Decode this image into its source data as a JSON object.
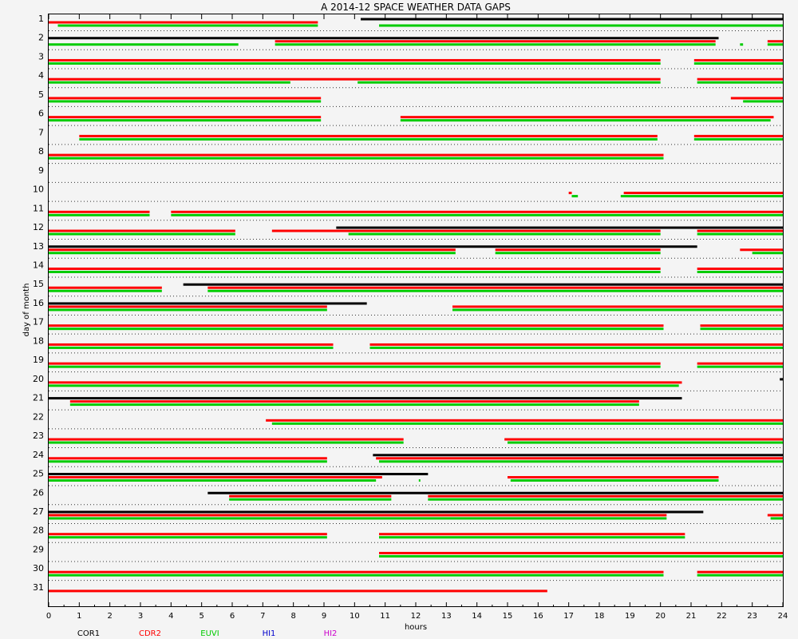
{
  "chart_data": {
    "type": "gantt",
    "title": "A  2014-12 SPACE WEATHER DATA GAPS",
    "xlabel": "hours",
    "ylabel": "day of month",
    "xlim": [
      0,
      24
    ],
    "days": [
      "1",
      "2",
      "3",
      "4",
      "5",
      "6",
      "7",
      "8",
      "9",
      "10",
      "11",
      "12",
      "13",
      "14",
      "15",
      "16",
      "17",
      "18",
      "19",
      "20",
      "21",
      "22",
      "23",
      "24",
      "25",
      "26",
      "27",
      "28",
      "29",
      "30",
      "31"
    ],
    "x_ticks": [
      "0",
      "1",
      "2",
      "3",
      "4",
      "5",
      "6",
      "7",
      "8",
      "9",
      "10",
      "11",
      "12",
      "13",
      "14",
      "15",
      "16",
      "17",
      "18",
      "19",
      "20",
      "21",
      "22",
      "23",
      "24"
    ],
    "series": [
      {
        "name": "COR1",
        "color": "#000000",
        "offset": -4,
        "segments": [
          [
            1,
            10.2,
            24
          ],
          [
            2,
            0,
            21.9
          ],
          [
            12,
            9.4,
            24
          ],
          [
            13,
            0,
            21.2
          ],
          [
            15,
            4.4,
            24
          ],
          [
            16,
            0,
            10.4
          ],
          [
            20,
            23.9,
            24
          ],
          [
            21,
            0,
            20.7
          ],
          [
            24,
            10.6,
            24
          ],
          [
            25,
            0,
            12.4
          ],
          [
            26,
            5.2,
            24
          ],
          [
            27,
            0,
            21.4
          ]
        ]
      },
      {
        "name": "CDR2",
        "color": "#ff0000",
        "offset": 0,
        "segments": [
          [
            1,
            0,
            8.8
          ],
          [
            2,
            7.4,
            21.8
          ],
          [
            2,
            23.5,
            24
          ],
          [
            3,
            0,
            20
          ],
          [
            3,
            21.1,
            24
          ],
          [
            4,
            0,
            20
          ],
          [
            4,
            21.2,
            24
          ],
          [
            5,
            0,
            8.9
          ],
          [
            5,
            22.3,
            24
          ],
          [
            6,
            0,
            8.9
          ],
          [
            6,
            11.5,
            23.7
          ],
          [
            7,
            1,
            19.9
          ],
          [
            7,
            21.1,
            24
          ],
          [
            8,
            0,
            20.1
          ],
          [
            10,
            17,
            17.1
          ],
          [
            10,
            18.8,
            24
          ],
          [
            11,
            0,
            3.3
          ],
          [
            11,
            4,
            24
          ],
          [
            12,
            0,
            6.1
          ],
          [
            12,
            7.3,
            20
          ],
          [
            12,
            21.2,
            24
          ],
          [
            13,
            0,
            13.3
          ],
          [
            13,
            14.6,
            20
          ],
          [
            13,
            22.6,
            24
          ],
          [
            14,
            0,
            20
          ],
          [
            14,
            21.2,
            24
          ],
          [
            15,
            0,
            3.7
          ],
          [
            15,
            5.2,
            24
          ],
          [
            16,
            0,
            9.1
          ],
          [
            16,
            13.2,
            24
          ],
          [
            17,
            0,
            20.1
          ],
          [
            17,
            21.3,
            24
          ],
          [
            18,
            0,
            9.3
          ],
          [
            18,
            10.5,
            24
          ],
          [
            19,
            0,
            20
          ],
          [
            19,
            21.2,
            24
          ],
          [
            20,
            0,
            20.7
          ],
          [
            21,
            0.7,
            19.3
          ],
          [
            22,
            7.1,
            24
          ],
          [
            23,
            0,
            11.6
          ],
          [
            23,
            14.9,
            24
          ],
          [
            24,
            0,
            9.1
          ],
          [
            24,
            10.7,
            24
          ],
          [
            25,
            0,
            10.9
          ],
          [
            25,
            15,
            21.9
          ],
          [
            26,
            5.9,
            11.2
          ],
          [
            26,
            12.4,
            24
          ],
          [
            27,
            0,
            20.2
          ],
          [
            27,
            23.5,
            24
          ],
          [
            28,
            0,
            9.1
          ],
          [
            28,
            10.8,
            20.8
          ],
          [
            29,
            10.8,
            24
          ],
          [
            30,
            0,
            20.1
          ],
          [
            30,
            21.2,
            24
          ],
          [
            31,
            0,
            16.3
          ]
        ]
      },
      {
        "name": "EUVI",
        "color": "#00cc00",
        "offset": 4,
        "segments": [
          [
            1,
            0.3,
            8.8
          ],
          [
            1,
            10.8,
            24
          ],
          [
            2,
            0,
            6.2
          ],
          [
            2,
            7.4,
            21.8
          ],
          [
            2,
            22.6,
            22.7
          ],
          [
            2,
            23.5,
            24
          ],
          [
            3,
            0,
            20
          ],
          [
            3,
            21.1,
            24
          ],
          [
            4,
            0,
            7.9
          ],
          [
            4,
            10.1,
            20
          ],
          [
            4,
            21.2,
            24
          ],
          [
            5,
            0,
            8.9
          ],
          [
            5,
            22.7,
            24
          ],
          [
            6,
            0,
            8.9
          ],
          [
            6,
            11.5,
            23.6
          ],
          [
            7,
            1,
            19.9
          ],
          [
            7,
            21.1,
            24
          ],
          [
            8,
            0,
            20.1
          ],
          [
            10,
            17.1,
            17.3
          ],
          [
            10,
            18.7,
            24
          ],
          [
            11,
            0,
            3.3
          ],
          [
            11,
            4,
            24
          ],
          [
            12,
            0,
            6.1
          ],
          [
            12,
            9.8,
            20
          ],
          [
            12,
            21.2,
            24
          ],
          [
            13,
            0,
            13.3
          ],
          [
            13,
            14.6,
            20
          ],
          [
            13,
            23,
            24
          ],
          [
            14,
            0,
            20
          ],
          [
            14,
            21.2,
            24
          ],
          [
            15,
            0,
            3.7
          ],
          [
            15,
            5.2,
            24
          ],
          [
            16,
            0,
            9.1
          ],
          [
            16,
            13.2,
            24
          ],
          [
            17,
            0,
            20.1
          ],
          [
            17,
            21.3,
            24
          ],
          [
            18,
            0,
            9.3
          ],
          [
            18,
            10.5,
            24
          ],
          [
            19,
            0,
            20
          ],
          [
            19,
            21.2,
            24
          ],
          [
            20,
            0,
            20.6
          ],
          [
            21,
            0.7,
            19.3
          ],
          [
            22,
            7.3,
            24
          ],
          [
            23,
            0,
            11.6
          ],
          [
            23,
            15,
            24
          ],
          [
            24,
            0,
            9.1
          ],
          [
            24,
            10.8,
            24
          ],
          [
            25,
            0,
            10.7
          ],
          [
            25,
            12.1,
            12.15
          ],
          [
            25,
            15.1,
            21.9
          ],
          [
            26,
            5.9,
            11.2
          ],
          [
            26,
            12.4,
            24
          ],
          [
            27,
            0,
            20.2
          ],
          [
            27,
            23.6,
            24
          ],
          [
            28,
            0,
            9.1
          ],
          [
            28,
            10.8,
            20.8
          ],
          [
            29,
            10.8,
            24
          ],
          [
            30,
            0,
            20.1
          ],
          [
            30,
            21.2,
            24
          ]
        ]
      },
      {
        "name": "HI1",
        "color": "#0000cc",
        "offset": 0,
        "segments": []
      },
      {
        "name": "HI2",
        "color": "#cc00cc",
        "offset": 0,
        "segments": []
      }
    ],
    "grid": "dotted"
  }
}
